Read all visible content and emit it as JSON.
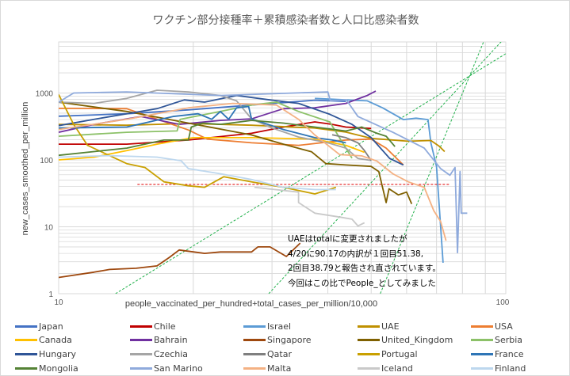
{
  "chart_data": {
    "type": "line",
    "title": "ワクチン部分接種率＋累積感染者数と人口比感染者数",
    "xlabel": "people_vaccinated_per_hundred+total_cases_per_million/10,000",
    "ylabel": "new_cases_smoothed_per_million",
    "xscale": "log",
    "yscale": "log",
    "xlim": [
      10,
      100
    ],
    "ylim": [
      1,
      6000
    ],
    "x_ticks": [
      "10",
      "100"
    ],
    "y_ticks": [
      "1",
      "10",
      "100",
      "1000"
    ],
    "grid": true,
    "legend_position": "bottom",
    "annotation": [
      "UAEはtotalに変更されましたが",
      "4/20に90.17の内訳が１回目51.38,",
      "2回目38.79と報告され直されています。",
      "今回はこの比でPeople_としてみました"
    ],
    "reference_lines": [
      {
        "name": "threshold",
        "style": "red-dashed",
        "points": [
          [
            15,
            43
          ],
          [
            75,
            43
          ]
        ]
      },
      {
        "name": "guide-1",
        "style": "green-dashed",
        "points": [
          [
            13.4,
            1
          ],
          [
            83,
            1800
          ]
        ]
      },
      {
        "name": "guide-2",
        "style": "green-dashed",
        "points": [
          [
            29.5,
            1
          ],
          [
            83,
            1800
          ]
        ]
      },
      {
        "name": "guide-3",
        "style": "green-dashed",
        "points": [
          [
            52.4,
            1
          ],
          [
            83,
            1800
          ]
        ]
      }
    ],
    "series": [
      {
        "name": "Japan",
        "color": "#4472C4",
        "points": [
          [
            10,
            450
          ],
          [
            14.2,
            490
          ],
          [
            19.5,
            560
          ],
          [
            27,
            660
          ],
          [
            37.4,
            780
          ],
          [
            43.9,
            750
          ]
        ]
      },
      {
        "name": "Chile",
        "color": "#C00000",
        "points": [
          [
            10,
            172
          ],
          [
            14.2,
            172
          ],
          [
            19.5,
            198
          ],
          [
            27,
            250
          ],
          [
            31.8,
            310
          ],
          [
            37.4,
            370
          ],
          [
            40.9,
            340
          ],
          [
            43.9,
            310
          ],
          [
            50,
            295
          ]
        ]
      },
      {
        "name": "Israel",
        "color": "#5B9BD5",
        "points": [
          [
            37.4,
            830
          ],
          [
            43.9,
            790
          ],
          [
            49,
            763
          ],
          [
            53,
            600
          ],
          [
            59,
            400
          ],
          [
            63,
            420
          ],
          [
            67,
            400
          ],
          [
            68,
            180
          ],
          [
            70,
            80
          ],
          [
            71,
            20
          ],
          [
            72.4,
            2.9
          ]
        ]
      },
      {
        "name": "UAE",
        "color": "#BF9000",
        "points": [
          [
            10,
            340
          ],
          [
            14.2,
            330
          ],
          [
            19.5,
            350
          ],
          [
            27,
            330
          ],
          [
            37.4,
            300
          ],
          [
            43.9,
            260
          ],
          [
            50,
            210
          ],
          [
            60.5,
            190
          ],
          [
            68,
            195
          ],
          [
            71,
            160
          ],
          [
            73,
            133
          ]
        ]
      },
      {
        "name": "USA",
        "color": "#ED7D31",
        "points": [
          [
            10,
            590
          ],
          [
            14.2,
            583
          ],
          [
            19.5,
            280
          ],
          [
            21.5,
            205
          ],
          [
            27,
            180
          ],
          [
            34.4,
            165
          ],
          [
            43.9,
            198
          ],
          [
            50,
            205
          ],
          [
            54,
            150
          ],
          [
            59,
            84
          ]
        ]
      },
      {
        "name": "Canada",
        "color": "#FFC000",
        "points": [
          [
            10,
            100
          ],
          [
            12,
            110
          ],
          [
            14.2,
            138
          ],
          [
            16.6,
            172
          ],
          [
            20,
            215
          ],
          [
            27,
            215
          ],
          [
            37.4,
            205
          ],
          [
            43.9,
            165
          ],
          [
            48.3,
            130
          ]
        ]
      },
      {
        "name": "Bahrain",
        "color": "#7030A0",
        "points": [
          [
            10,
            259
          ],
          [
            12,
            340
          ],
          [
            15.3,
            445
          ],
          [
            18.6,
            340
          ],
          [
            23,
            390
          ],
          [
            27,
            410
          ],
          [
            31.8,
            583
          ],
          [
            37.4,
            600
          ],
          [
            43.9,
            700
          ],
          [
            49,
            920
          ],
          [
            51.2,
            1070
          ]
        ]
      },
      {
        "name": "Singapore",
        "color": "#9E480E",
        "points": [
          [
            10,
            1.75
          ],
          [
            12,
            2.1
          ],
          [
            13,
            2.3
          ],
          [
            14.9,
            2.4
          ],
          [
            16.6,
            2.6
          ],
          [
            17.7,
            3.5
          ],
          [
            18.6,
            4.5
          ],
          [
            21.2,
            4.0
          ],
          [
            23,
            4.2
          ],
          [
            27,
            4.2
          ],
          [
            27.9,
            5.0
          ],
          [
            29.7,
            5.0
          ],
          [
            32.3,
            3.6
          ],
          [
            34.7,
            5.7
          ]
        ]
      },
      {
        "name": "United_Kingdom",
        "color": "#7F6000",
        "points": [
          [
            10,
            730
          ],
          [
            14.2,
            530
          ],
          [
            19.5,
            355
          ],
          [
            27,
            236
          ],
          [
            31.8,
            172
          ],
          [
            36.8,
            132
          ],
          [
            39.6,
            88
          ],
          [
            43.9,
            84
          ],
          [
            50,
            80
          ],
          [
            52,
            67
          ],
          [
            54,
            23
          ],
          [
            54.8,
            37
          ],
          [
            57.5,
            30
          ],
          [
            60,
            33
          ],
          [
            61.6,
            22
          ]
        ]
      },
      {
        "name": "Serbia",
        "color": "#8CC168",
        "points": [
          [
            10,
            226
          ],
          [
            14.2,
            259
          ],
          [
            18.4,
            271
          ],
          [
            18.7,
            405
          ],
          [
            23,
            530
          ],
          [
            27,
            660
          ],
          [
            30.7,
            730
          ],
          [
            34.4,
            530
          ],
          [
            40.4,
            370
          ],
          [
            43.9,
            150
          ],
          [
            45.3,
            106
          ]
        ]
      },
      {
        "name": "Hungary",
        "color": "#2F5597",
        "points": [
          [
            10,
            325
          ],
          [
            12,
            405
          ],
          [
            16.6,
            583
          ],
          [
            19.1,
            790
          ],
          [
            21.2,
            730
          ],
          [
            25,
            920
          ],
          [
            29.2,
            800
          ],
          [
            34.4,
            700
          ],
          [
            40.4,
            480
          ],
          [
            45.3,
            340
          ],
          [
            50,
            215
          ],
          [
            55,
            105
          ],
          [
            59,
            84
          ]
        ]
      },
      {
        "name": "Czechia",
        "color": "#A5A5A5",
        "points": [
          [
            10,
            730
          ],
          [
            12,
            700
          ],
          [
            14.2,
            830
          ],
          [
            16.6,
            1100
          ],
          [
            19.5,
            1040
          ],
          [
            23,
            920
          ],
          [
            25,
            763
          ],
          [
            27,
            410
          ],
          [
            30,
            300
          ],
          [
            34.4,
            220
          ],
          [
            40,
            180
          ],
          [
            43.9,
            150
          ],
          [
            46.7,
            105
          ],
          [
            50,
            98
          ]
        ]
      },
      {
        "name": "Qatar",
        "color": "#7F7F7F",
        "points": [
          [
            40.9,
            237
          ],
          [
            43.9,
            215
          ],
          [
            46.7,
            180
          ],
          [
            48.3,
            138
          ],
          [
            50,
            98
          ]
        ]
      },
      {
        "name": "Portugal",
        "color": "#C9A000",
        "points": [
          [
            10,
            950
          ],
          [
            10.8,
            340
          ],
          [
            11.6,
            165
          ],
          [
            14.2,
            88
          ],
          [
            15.6,
            77
          ],
          [
            17.2,
            47
          ],
          [
            19.5,
            41
          ],
          [
            21.2,
            39
          ],
          [
            23.4,
            56
          ],
          [
            27,
            47
          ],
          [
            31.8,
            39
          ],
          [
            37.4,
            31
          ],
          [
            41.7,
            39
          ]
        ]
      },
      {
        "name": "France",
        "color": "#2E75B6",
        "points": [
          [
            10,
            300
          ],
          [
            14.2,
            310
          ],
          [
            18,
            445
          ],
          [
            20.5,
            490
          ],
          [
            22,
            405
          ],
          [
            23,
            530
          ],
          [
            24,
            405
          ],
          [
            25,
            600
          ],
          [
            26.6,
            630
          ],
          [
            27,
            410
          ],
          [
            31.8,
            285
          ],
          [
            37.4,
            215
          ],
          [
            40.9,
            198
          ],
          [
            43.9,
            180
          ]
        ]
      },
      {
        "name": "Mongolia",
        "color": "#548235",
        "points": [
          [
            10,
            117
          ],
          [
            14.2,
            150
          ],
          [
            17.2,
            198
          ],
          [
            19.5,
            198
          ],
          [
            19.8,
            310
          ],
          [
            21,
            355
          ],
          [
            23,
            340
          ],
          [
            27,
            390
          ],
          [
            31.8,
            355
          ],
          [
            37.4,
            310
          ],
          [
            43.9,
            270
          ],
          [
            47.6,
            310
          ],
          [
            51.5,
            250
          ],
          [
            54,
            226
          ],
          [
            56.5,
            158
          ]
        ]
      },
      {
        "name": "San Marino",
        "color": "#8FAADC",
        "points": [
          [
            10,
            730
          ],
          [
            10.8,
            1000
          ],
          [
            14.2,
            1040
          ],
          [
            23,
            920
          ],
          [
            40,
            1040
          ],
          [
            40.5,
            770
          ],
          [
            44,
            790
          ],
          [
            46.7,
            445
          ],
          [
            55.9,
            259
          ],
          [
            65.7,
            150
          ],
          [
            71.5,
            74
          ],
          [
            75,
            59
          ],
          [
            77,
            77
          ],
          [
            78,
            4.1
          ],
          [
            79,
            67
          ],
          [
            79.5,
            16
          ],
          [
            82,
            16
          ]
        ]
      },
      {
        "name": "Malta",
        "color": "#F4B183",
        "points": [
          [
            10,
            285
          ],
          [
            14.2,
            405
          ],
          [
            19.5,
            600
          ],
          [
            24.5,
            700
          ],
          [
            30.7,
            660
          ],
          [
            34.4,
            405
          ],
          [
            37.4,
            236
          ],
          [
            42.5,
            120
          ],
          [
            47.6,
            115
          ],
          [
            51.5,
            96
          ],
          [
            55.9,
            62
          ],
          [
            60.5,
            47
          ],
          [
            65.7,
            39
          ],
          [
            69,
            17.5
          ],
          [
            71.5,
            12
          ],
          [
            73.5,
            6.2
          ]
        ]
      },
      {
        "name": "Iceland",
        "color": "#C9C9C9",
        "points": [
          [
            27.4,
            39
          ],
          [
            34.4,
            33
          ],
          [
            34.4,
            23
          ],
          [
            37.4,
            16
          ],
          [
            42.5,
            14
          ],
          [
            45.3,
            13
          ],
          [
            46.7,
            10.3
          ],
          [
            48.3,
            11.5
          ]
        ]
      },
      {
        "name": "Finland",
        "color": "#BDD7EE",
        "points": [
          [
            10,
            110
          ],
          [
            13,
            116
          ],
          [
            16.6,
            110
          ],
          [
            18.8,
            97
          ],
          [
            19.5,
            74
          ],
          [
            23,
            62
          ],
          [
            27,
            51
          ],
          [
            31.8,
            39
          ],
          [
            37.4,
            36
          ],
          [
            41.7,
            36
          ]
        ]
      }
    ]
  }
}
